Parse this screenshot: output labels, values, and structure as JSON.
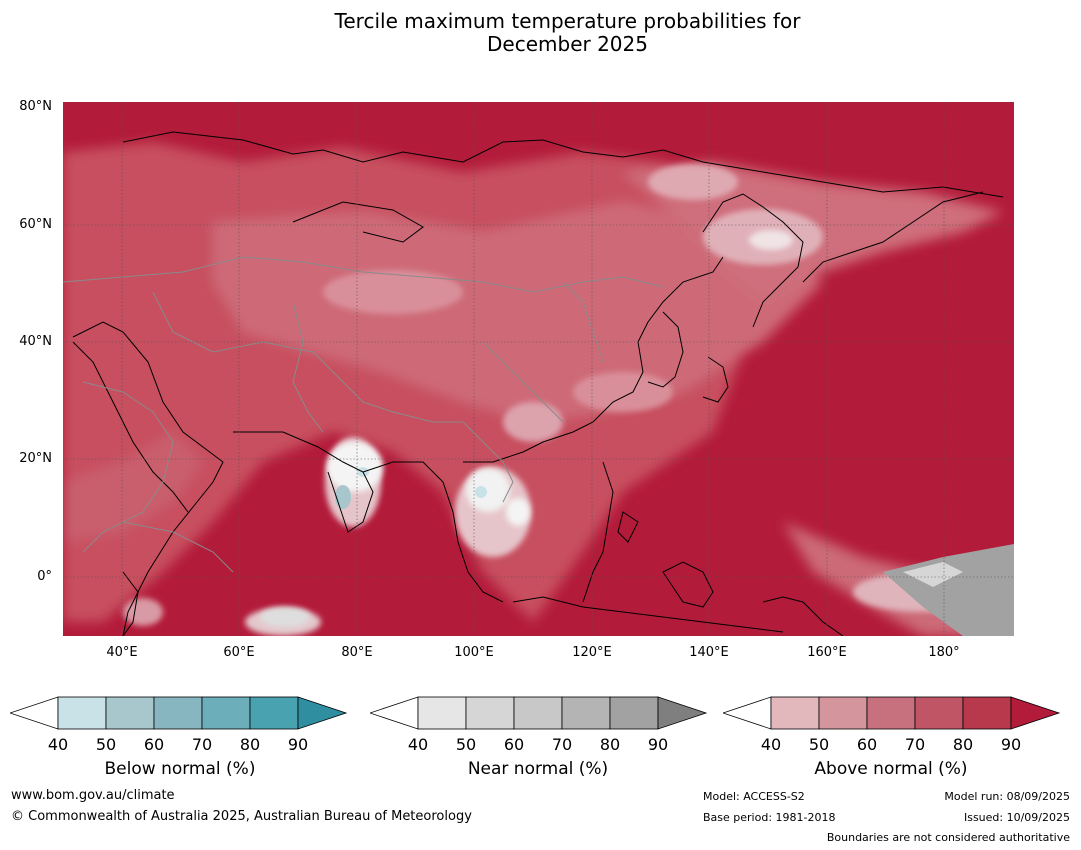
{
  "title_line1": "Tercile maximum temperature probabilities for",
  "title_line2": "December 2025",
  "lat_labels": [
    "80°N",
    "60°N",
    "40°N",
    "20°N",
    "0°"
  ],
  "lon_labels": [
    "40°E",
    "60°E",
    "80°E",
    "100°E",
    "120°E",
    "140°E",
    "160°E",
    "180°"
  ],
  "colorbars": [
    {
      "title": "Below normal (%)",
      "ticks": [
        "40",
        "50",
        "60",
        "70",
        "80",
        "90"
      ],
      "colors": [
        "#ffffff",
        "#c9e2e8",
        "#a7c7cd",
        "#88b6c0",
        "#6caeba",
        "#48a2b0",
        "#2f8fa0"
      ]
    },
    {
      "title": "Near normal (%)",
      "ticks": [
        "40",
        "50",
        "60",
        "70",
        "80",
        "90"
      ],
      "colors": [
        "#ffffff",
        "#e6e6e6",
        "#d6d6d6",
        "#c8c8c8",
        "#b4b4b4",
        "#a2a2a2",
        "#7f7f7f"
      ]
    },
    {
      "title": "Above normal (%)",
      "ticks": [
        "40",
        "50",
        "60",
        "70",
        "80",
        "90"
      ],
      "colors": [
        "#ffffff",
        "#e2b8bd",
        "#d4959d",
        "#c7707e",
        "#bf5565",
        "#b8394c",
        "#b31b3a"
      ]
    }
  ],
  "footer": {
    "website": "www.bom.gov.au/climate",
    "copyright": "© Commonwealth of Australia 2025, Australian Bureau of Meteorology",
    "model": "Model: ACCESS-S2",
    "base_period": "Base period: 1981-2018",
    "model_run": "Model run: 08/09/2025",
    "issued": "Issued: 10/09/2025",
    "disclaimer": "Boundaries are not considered authoritative"
  }
}
